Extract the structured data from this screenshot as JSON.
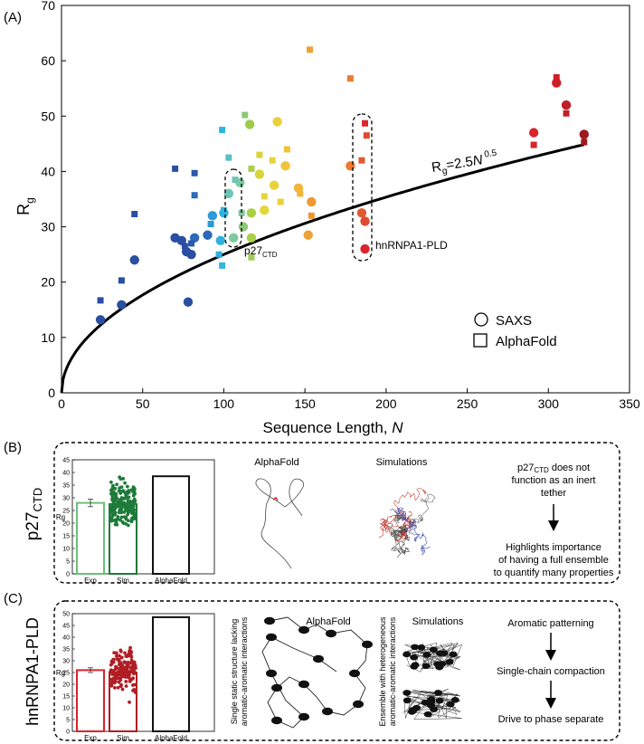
{
  "panel_a": {
    "panel_label": "(A)",
    "chart_data": {
      "type": "scatter",
      "xlabel": "Sequence Length, N",
      "xlabel_main": "Sequence Length, ",
      "xlabel_var": "N",
      "ylabel": "Rg",
      "ylabel_main": "R",
      "ylabel_sub": "g",
      "xlim": [
        0,
        350
      ],
      "ylim": [
        0,
        70
      ],
      "xticks": [
        0,
        50,
        100,
        150,
        200,
        250,
        300,
        350
      ],
      "yticks": [
        0,
        10,
        20,
        30,
        40,
        50,
        60,
        70
      ],
      "grid": false,
      "fit": {
        "label": "Rg=2.5N^0.5",
        "label_main": "R",
        "label_sub": "g",
        "label_eq": "=2.5",
        "label_var": "N",
        "label_exp": " 0.5",
        "prefactor": 2.5,
        "exponent": 0.5
      },
      "legend": {
        "position": "bottom-right",
        "entries": [
          {
            "marker": "circle",
            "label": "SAXS"
          },
          {
            "marker": "square",
            "label": "AlphaFold"
          }
        ]
      },
      "annotations": [
        {
          "label_main": "p27",
          "label_sub": "CTD",
          "x": 108,
          "y": 25
        },
        {
          "label": "hnRNPA1-PLD",
          "x": 190,
          "y": 26
        }
      ],
      "highlight_groups": [
        {
          "name": "p27CTD",
          "x": 106,
          "y_min": 26,
          "y_max": 41
        },
        {
          "name": "hnRNPA1-PLD",
          "x": 187,
          "y_min": 24,
          "y_max": 49
        }
      ],
      "series": [
        {
          "name": "SAXS",
          "marker": "circle",
          "points": [
            {
              "x": 24,
              "y": 13.2,
              "c": "#2a4ea0"
            },
            {
              "x": 37,
              "y": 15.9,
              "c": "#2a4ea0"
            },
            {
              "x": 45,
              "y": 24.0,
              "c": "#2a4ea0"
            },
            {
              "x": 70,
              "y": 28.0,
              "c": "#2a4ea0"
            },
            {
              "x": 74,
              "y": 27.5,
              "c": "#2a4ea0"
            },
            {
              "x": 77,
              "y": 25.5,
              "c": "#2a4ea0"
            },
            {
              "x": 78,
              "y": 16.4,
              "c": "#2a4ea0"
            },
            {
              "x": 80,
              "y": 25.0,
              "c": "#2a4ea0"
            },
            {
              "x": 82,
              "y": 28.0,
              "c": "#2a6ab8"
            },
            {
              "x": 90,
              "y": 28.5,
              "c": "#2a6ab8"
            },
            {
              "x": 93,
              "y": 32.0,
              "c": "#2a9ad8"
            },
            {
              "x": 98,
              "y": 27.5,
              "c": "#30b0e0"
            },
            {
              "x": 100,
              "y": 32.5,
              "c": "#30b0e0"
            },
            {
              "x": 103,
              "y": 36.0,
              "c": "#6cc5b5"
            },
            {
              "x": 106,
              "y": 28.0,
              "c": "#7dca9c"
            },
            {
              "x": 110,
              "y": 38.0,
              "c": "#7dca9c"
            },
            {
              "x": 112,
              "y": 30.0,
              "c": "#8cc878"
            },
            {
              "x": 116,
              "y": 48.5,
              "c": "#9ccc4c"
            },
            {
              "x": 117,
              "y": 28.0,
              "c": "#a8d045"
            },
            {
              "x": 117,
              "y": 32.5,
              "c": "#a8d045"
            },
            {
              "x": 122,
              "y": 39.5,
              "c": "#d8d43a"
            },
            {
              "x": 125,
              "y": 33.0,
              "c": "#e2d63a"
            },
            {
              "x": 131,
              "y": 37.5,
              "c": "#e8d23a"
            },
            {
              "x": 133,
              "y": 49.0,
              "c": "#ead03a"
            },
            {
              "x": 138,
              "y": 41.0,
              "c": "#f0c43a"
            },
            {
              "x": 146,
              "y": 37.0,
              "c": "#f3b43a"
            },
            {
              "x": 152,
              "y": 28.5,
              "c": "#f0a035"
            },
            {
              "x": 154,
              "y": 34.5,
              "c": "#ee9832"
            },
            {
              "x": 178,
              "y": 41.0,
              "c": "#ec7a30"
            },
            {
              "x": 185,
              "y": 32.5,
              "c": "#e05a30"
            },
            {
              "x": 187,
              "y": 31.0,
              "c": "#e04a30"
            },
            {
              "x": 187,
              "y": 26.0,
              "c": "#d8242c"
            },
            {
              "x": 291,
              "y": 47.0,
              "c": "#d8242c"
            },
            {
              "x": 305,
              "y": 56.0,
              "c": "#d01e28"
            },
            {
              "x": 311,
              "y": 52.0,
              "c": "#c01e28"
            },
            {
              "x": 322,
              "y": 46.7,
              "c": "#9e1a20"
            }
          ]
        },
        {
          "name": "AlphaFold",
          "marker": "square",
          "points": [
            {
              "x": 24,
              "y": 16.7,
              "c": "#2a4ea0"
            },
            {
              "x": 37,
              "y": 20.3,
              "c": "#2a4ea0"
            },
            {
              "x": 45,
              "y": 32.3,
              "c": "#2a4ea0"
            },
            {
              "x": 70,
              "y": 40.5,
              "c": "#2a4ea0"
            },
            {
              "x": 76,
              "y": 26.5,
              "c": "#2a4ea0"
            },
            {
              "x": 80,
              "y": 27.0,
              "c": "#2a5aaa"
            },
            {
              "x": 82,
              "y": 39.7,
              "c": "#2a5aaa"
            },
            {
              "x": 82,
              "y": 35.7,
              "c": "#2a6ab8"
            },
            {
              "x": 92,
              "y": 30.5,
              "c": "#2a9ad8"
            },
            {
              "x": 97,
              "y": 25.0,
              "c": "#30b0e0"
            },
            {
              "x": 99,
              "y": 47.5,
              "c": "#30b5e0"
            },
            {
              "x": 99,
              "y": 23.0,
              "c": "#30b5e0"
            },
            {
              "x": 100,
              "y": 33.0,
              "c": "#30b5e0"
            },
            {
              "x": 103,
              "y": 42.5,
              "c": "#55c0c8"
            },
            {
              "x": 107,
              "y": 38.5,
              "c": "#6cc5b5"
            },
            {
              "x": 111,
              "y": 32.5,
              "c": "#7dca9c"
            },
            {
              "x": 113,
              "y": 50.2,
              "c": "#8cc878"
            },
            {
              "x": 117,
              "y": 24.5,
              "c": "#a0cc55"
            },
            {
              "x": 117,
              "y": 40.5,
              "c": "#a8d045"
            },
            {
              "x": 122,
              "y": 43.0,
              "c": "#d8d43a"
            },
            {
              "x": 125,
              "y": 35.5,
              "c": "#e2d63a"
            },
            {
              "x": 130,
              "y": 42.0,
              "c": "#e8d23a"
            },
            {
              "x": 135,
              "y": 34.5,
              "c": "#ead03a"
            },
            {
              "x": 139,
              "y": 44.0,
              "c": "#f0c43a"
            },
            {
              "x": 147,
              "y": 36.0,
              "c": "#f3b43a"
            },
            {
              "x": 153,
              "y": 62.0,
              "c": "#f0a035"
            },
            {
              "x": 154,
              "y": 32.0,
              "c": "#ee9832"
            },
            {
              "x": 178,
              "y": 56.8,
              "c": "#ec7a30"
            },
            {
              "x": 185,
              "y": 42.0,
              "c": "#e05a30"
            },
            {
              "x": 188,
              "y": 46.5,
              "c": "#e04a30"
            },
            {
              "x": 187,
              "y": 48.7,
              "c": "#d8242c"
            },
            {
              "x": 291,
              "y": 44.8,
              "c": "#d8242c"
            },
            {
              "x": 305,
              "y": 57.0,
              "c": "#d01e28"
            },
            {
              "x": 311,
              "y": 50.5,
              "c": "#c01e28"
            },
            {
              "x": 322,
              "y": 45.3,
              "c": "#9e1a20"
            }
          ]
        }
      ]
    }
  },
  "panel_b": {
    "panel_label": "(B)",
    "side_title_main": "p27",
    "side_title_sub": "CTD",
    "bar_chart": {
      "type": "bar",
      "categories": [
        "Exp",
        "Sim",
        "AlphaFold"
      ],
      "values": [
        28.0,
        27.5,
        38.5
      ],
      "errors": [
        1.5,
        0.5,
        0
      ],
      "colors": [
        "#6bbf7a",
        "#1e7a3a",
        "#111111"
      ],
      "ylabel": "Rg",
      "ylim": [
        0,
        45
      ],
      "yticks": [
        0,
        5,
        10,
        15,
        20,
        25,
        30,
        35,
        40,
        45
      ]
    },
    "alphafold_label": "AlphaFold",
    "simulations_label": "Simulations",
    "statement_top_main": "p27",
    "statement_top_sub": "CTD",
    "statement_top_rest": " does not",
    "statement_top_line2": "function as an inert",
    "statement_top_line3": "tether",
    "statement_bottom_line1": "Highlights importance",
    "statement_bottom_line2": "of having a full ensemble",
    "statement_bottom_line3": "to quantify many properties"
  },
  "panel_c": {
    "panel_label": "(C)",
    "side_title": "hnRNPA1-PLD",
    "bar_chart": {
      "type": "bar",
      "categories": [
        "Exp",
        "Sim",
        "AlphaFold"
      ],
      "values": [
        26.0,
        25.0,
        48.5
      ],
      "errors": [
        1.0,
        0.5,
        0
      ],
      "colors": [
        "#d8242c",
        "#b01e24",
        "#111111"
      ],
      "ylabel": "Rg",
      "ylim": [
        0,
        50
      ],
      "yticks": [
        0,
        5,
        10,
        15,
        20,
        25,
        30,
        35,
        40,
        45,
        50
      ]
    },
    "alphafold_label": "AlphaFold",
    "simulations_label": "Simulations",
    "vertical_note_1_line1": "Single static structure lacking",
    "vertical_note_1_line2": "aromatic-aromatic interactions",
    "vertical_note_2_line1": "Ensemble with heterogeneous",
    "vertical_note_2_line2": "aromatic-aromatic interactions",
    "flow": [
      "Aromatic patterning",
      "Single-chain compaction",
      "Drive to phase separate"
    ]
  },
  "colors": {
    "fit_line": "#000000",
    "p27_bonds_red": "#c0281e",
    "p27_bonds_blue": "#2a3ea8",
    "blob": "#111111"
  }
}
